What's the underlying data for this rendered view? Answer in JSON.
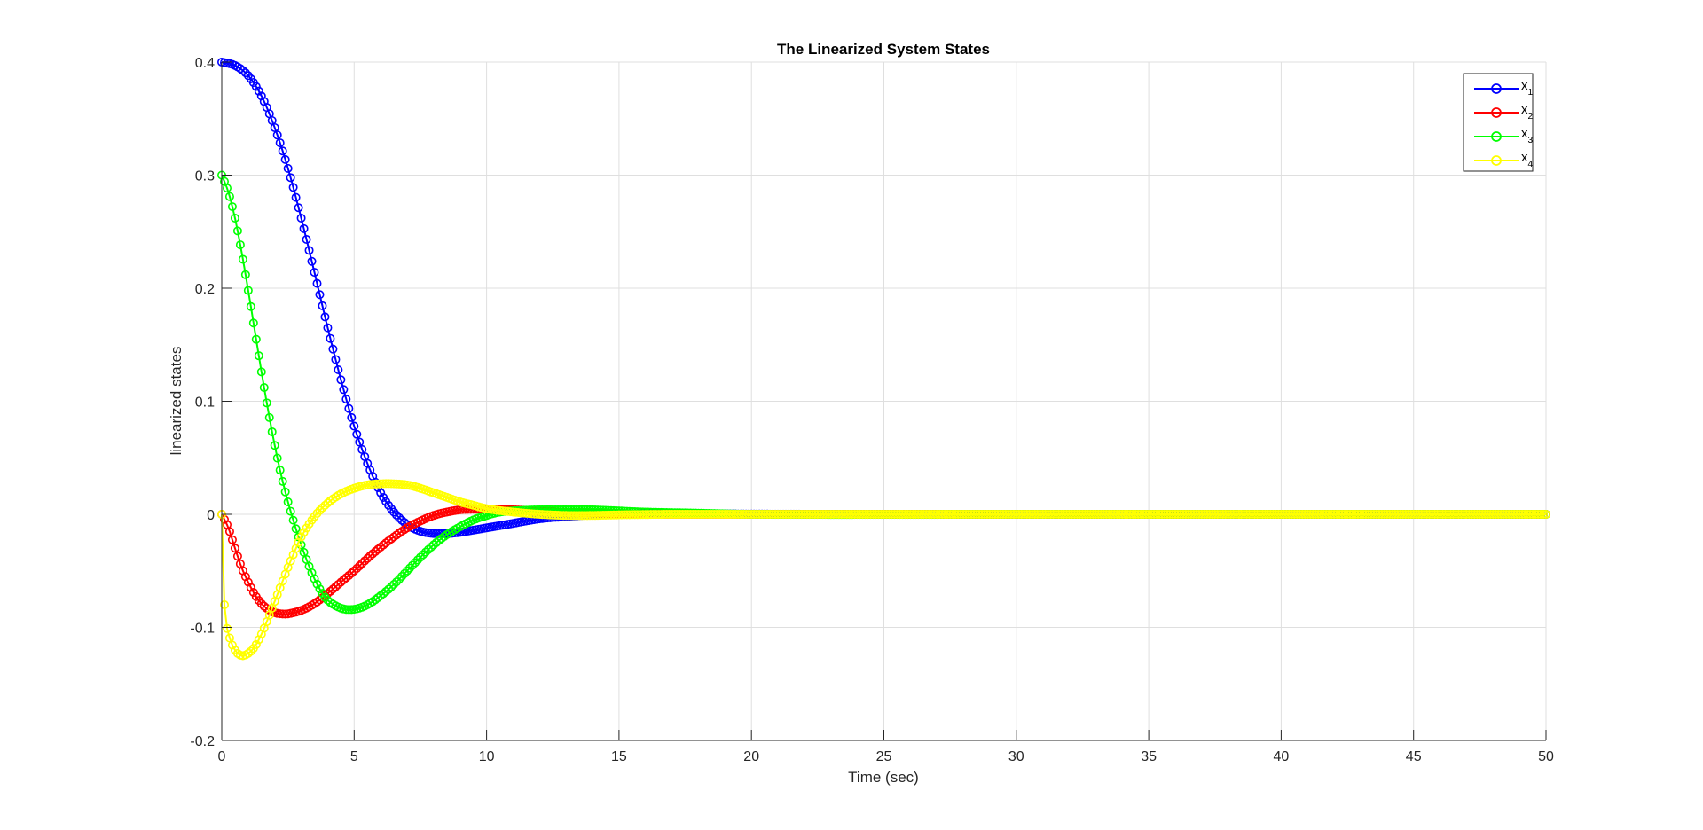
{
  "chart_data": {
    "type": "line",
    "title": "The Linearized System States",
    "xlabel": "Time (sec)",
    "ylabel": "linearized states",
    "xlim": [
      0,
      50
    ],
    "ylim": [
      -0.2,
      0.4
    ],
    "xticks": [
      0,
      5,
      10,
      15,
      20,
      25,
      30,
      35,
      40,
      45,
      50
    ],
    "yticks": [
      -0.2,
      -0.1,
      0,
      0.1,
      0.2,
      0.3,
      0.4
    ],
    "xtick_labels": [
      "0",
      "5",
      "10",
      "15",
      "20",
      "25",
      "30",
      "35",
      "40",
      "45",
      "50"
    ],
    "ytick_labels": [
      "-0.2",
      "-0.1",
      "0",
      "0.1",
      "0.2",
      "0.3",
      "0.4"
    ],
    "grid": true,
    "legend_position": "top-right",
    "marker": "circle",
    "series": [
      {
        "name": "x1",
        "legend_main": "x",
        "legend_sub": "1",
        "color": "#0000ff",
        "points": [
          [
            0,
            0.4
          ],
          [
            0.5,
            0.397
          ],
          [
            1,
            0.388
          ],
          [
            1.5,
            0.37
          ],
          [
            2,
            0.342
          ],
          [
            2.5,
            0.306
          ],
          [
            3,
            0.262
          ],
          [
            3.5,
            0.214
          ],
          [
            4,
            0.165
          ],
          [
            4.5,
            0.119
          ],
          [
            5,
            0.078
          ],
          [
            5.5,
            0.045
          ],
          [
            6,
            0.019
          ],
          [
            6.5,
            0.002
          ],
          [
            7,
            -0.009
          ],
          [
            7.5,
            -0.015
          ],
          [
            8,
            -0.017
          ],
          [
            8.5,
            -0.017
          ],
          [
            9,
            -0.016
          ],
          [
            9.5,
            -0.014
          ],
          [
            10,
            -0.012
          ],
          [
            11,
            -0.008
          ],
          [
            12,
            -0.004
          ],
          [
            13,
            -0.002
          ],
          [
            14,
            -0.0005
          ],
          [
            15,
            0.0003
          ],
          [
            16,
            0.0006
          ],
          [
            17,
            0.0005
          ],
          [
            18,
            0.0004
          ],
          [
            20,
            0.0002
          ],
          [
            23,
            0.0
          ],
          [
            30,
            0.0
          ],
          [
            40,
            0.0
          ],
          [
            50,
            0.0
          ]
        ]
      },
      {
        "name": "x2",
        "legend_main": "x",
        "legend_sub": "2",
        "color": "#ff0000",
        "points": [
          [
            0,
            0.0
          ],
          [
            0.25,
            -0.012
          ],
          [
            0.5,
            -0.03
          ],
          [
            0.75,
            -0.047
          ],
          [
            1,
            -0.06
          ],
          [
            1.25,
            -0.071
          ],
          [
            1.5,
            -0.079
          ],
          [
            1.75,
            -0.084
          ],
          [
            2,
            -0.087
          ],
          [
            2.25,
            -0.088
          ],
          [
            2.5,
            -0.088
          ],
          [
            3,
            -0.085
          ],
          [
            3.5,
            -0.079
          ],
          [
            4,
            -0.07
          ],
          [
            4.5,
            -0.06
          ],
          [
            5,
            -0.05
          ],
          [
            5.5,
            -0.039
          ],
          [
            6,
            -0.029
          ],
          [
            6.5,
            -0.02
          ],
          [
            7,
            -0.012
          ],
          [
            7.5,
            -0.006
          ],
          [
            8,
            -0.001
          ],
          [
            8.5,
            0.002
          ],
          [
            9,
            0.004
          ],
          [
            9.5,
            0.0045
          ],
          [
            10,
            0.0045
          ],
          [
            11,
            0.004
          ],
          [
            12,
            0.003
          ],
          [
            13,
            0.002
          ],
          [
            14,
            0.001
          ],
          [
            15,
            0.0005
          ],
          [
            17,
            0.0
          ],
          [
            20,
            0.0
          ],
          [
            30,
            0.0
          ],
          [
            40,
            0.0
          ],
          [
            50,
            0.0
          ]
        ]
      },
      {
        "name": "x3",
        "legend_main": "x",
        "legend_sub": "3",
        "color": "#00ff00",
        "points": [
          [
            0,
            0.3
          ],
          [
            0.25,
            0.285
          ],
          [
            0.5,
            0.262
          ],
          [
            0.75,
            0.232
          ],
          [
            1,
            0.198
          ],
          [
            1.25,
            0.162
          ],
          [
            1.5,
            0.126
          ],
          [
            1.75,
            0.092
          ],
          [
            2,
            0.061
          ],
          [
            2.25,
            0.034
          ],
          [
            2.5,
            0.011
          ],
          [
            2.75,
            -0.009
          ],
          [
            3,
            -0.027
          ],
          [
            3.25,
            -0.043
          ],
          [
            3.5,
            -0.057
          ],
          [
            3.75,
            -0.068
          ],
          [
            4,
            -0.076
          ],
          [
            4.5,
            -0.083
          ],
          [
            5,
            -0.084
          ],
          [
            5.5,
            -0.08
          ],
          [
            6,
            -0.072
          ],
          [
            6.5,
            -0.062
          ],
          [
            7,
            -0.05
          ],
          [
            7.5,
            -0.038
          ],
          [
            8,
            -0.027
          ],
          [
            8.5,
            -0.018
          ],
          [
            9,
            -0.011
          ],
          [
            9.5,
            -0.005
          ],
          [
            10,
            -0.001
          ],
          [
            10.5,
            0.002
          ],
          [
            11,
            0.003
          ],
          [
            12,
            0.004
          ],
          [
            13,
            0.004
          ],
          [
            14,
            0.004
          ],
          [
            15,
            0.003
          ],
          [
            16,
            0.002
          ],
          [
            18,
            0.001
          ],
          [
            20,
            0.0
          ],
          [
            30,
            0.0
          ],
          [
            40,
            0.0
          ],
          [
            50,
            0.0
          ]
        ]
      },
      {
        "name": "x4",
        "legend_main": "x",
        "legend_sub": "4",
        "color": "#ffff00",
        "points": [
          [
            0,
            0.0
          ],
          [
            0.1,
            -0.08
          ],
          [
            0.25,
            -0.105
          ],
          [
            0.5,
            -0.12
          ],
          [
            0.75,
            -0.125
          ],
          [
            1,
            -0.123
          ],
          [
            1.25,
            -0.117
          ],
          [
            1.5,
            -0.106
          ],
          [
            1.75,
            -0.092
          ],
          [
            2,
            -0.077
          ],
          [
            2.25,
            -0.062
          ],
          [
            2.5,
            -0.047
          ],
          [
            2.75,
            -0.033
          ],
          [
            3,
            -0.02
          ],
          [
            3.5,
            -0.002
          ],
          [
            4,
            0.01
          ],
          [
            4.5,
            0.018
          ],
          [
            5,
            0.023
          ],
          [
            5.5,
            0.026
          ],
          [
            6,
            0.027
          ],
          [
            6.5,
            0.027
          ],
          [
            7,
            0.026
          ],
          [
            7.5,
            0.023
          ],
          [
            8,
            0.019
          ],
          [
            8.5,
            0.015
          ],
          [
            9,
            0.011
          ],
          [
            9.5,
            0.008
          ],
          [
            10,
            0.005
          ],
          [
            11,
            0.002
          ],
          [
            12,
            0.0
          ],
          [
            13,
            -0.001
          ],
          [
            14,
            -0.001
          ],
          [
            15,
            -0.0005
          ],
          [
            17,
            0.0
          ],
          [
            20,
            0.0
          ],
          [
            30,
            0.0
          ],
          [
            40,
            0.0
          ],
          [
            50,
            0.0
          ]
        ]
      }
    ]
  }
}
